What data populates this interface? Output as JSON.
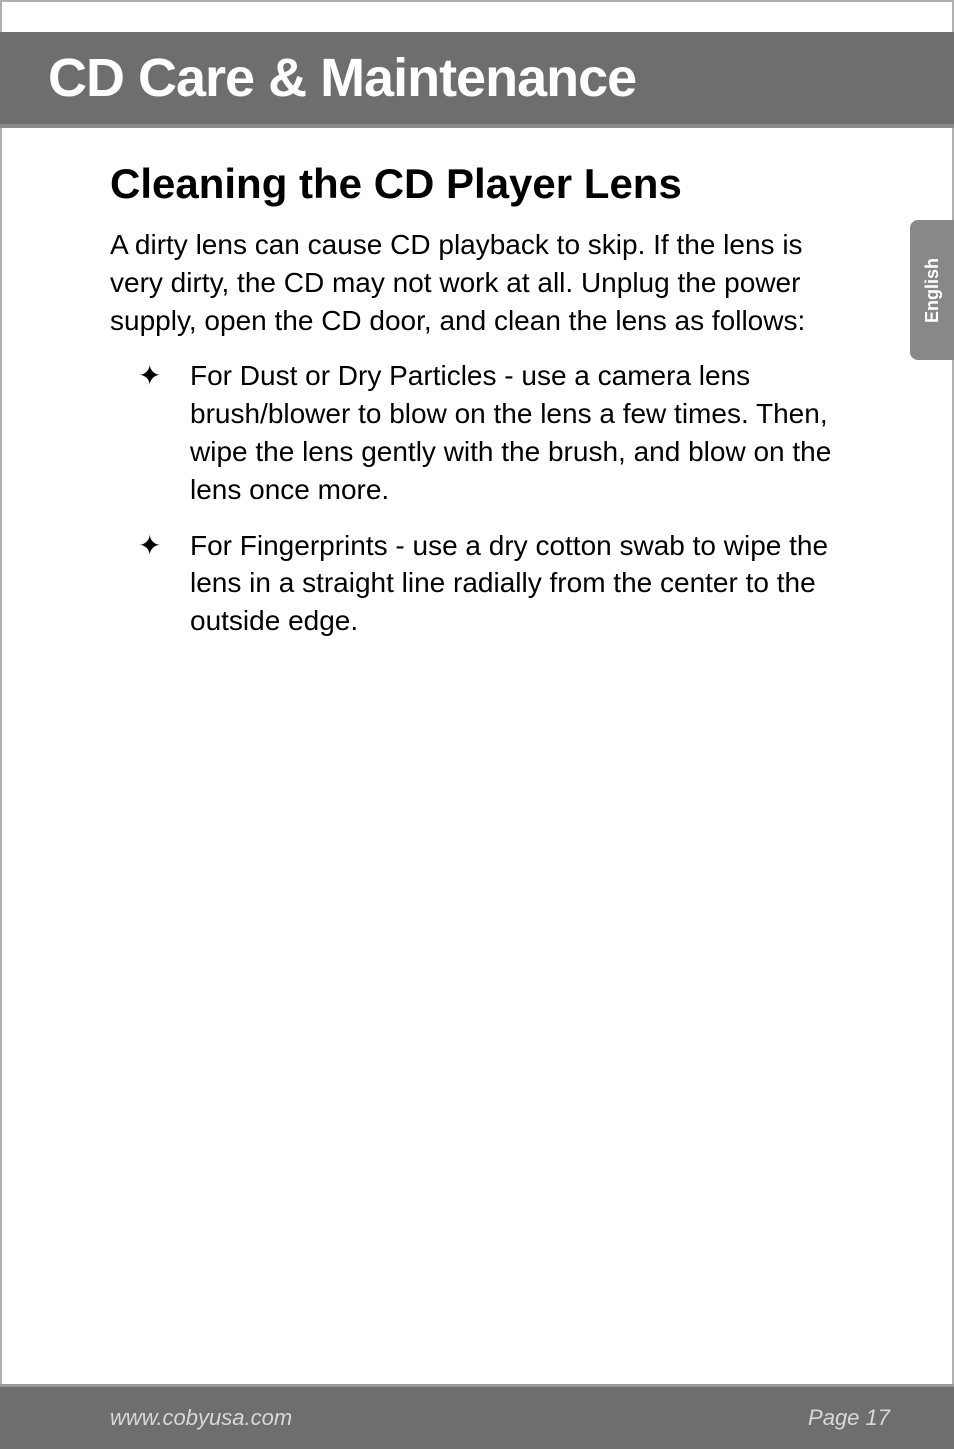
{
  "colors": {
    "header_bg": "#6e6e6e",
    "header_underline": "#8a8a8a",
    "footer_bg": "#6e6e6e",
    "footer_topline": "#9a9a9a",
    "side_tab_bg": "#888888",
    "side_tab_text": "#ffffff",
    "header_text": "#ffffff",
    "body_text": "#000000",
    "footer_text": "#d8d8d8",
    "page_border": "#b0b0b0",
    "page_bg": "#ffffff"
  },
  "typography": {
    "header_title_size": 54,
    "header_title_weight": 700,
    "h2_size": 42,
    "h2_weight": 700,
    "body_size": 28,
    "body_line_height": 1.35,
    "footer_size": 22,
    "side_tab_size": 18
  },
  "header": {
    "title": "CD Care & Maintenance"
  },
  "side_tab": {
    "label": "English"
  },
  "section": {
    "heading": "Cleaning the CD Player Lens",
    "intro": "A dirty lens can cause CD playback to skip. If the lens is very dirty, the CD may not work at all. Unplug the power supply, open the CD door, and clean the lens as follows:",
    "bullets": [
      "For Dust or Dry Particles - use a camera lens brush/blower to blow on the lens a few times. Then, wipe the lens gently with the brush, and blow on the lens once more.",
      "For Fingerprints - use a dry cotton swab to wipe the lens in a straight line radially from the center to the outside edge."
    ],
    "bullet_marker": "✦"
  },
  "footer": {
    "left": "www.cobyusa.com",
    "right": "Page 17"
  }
}
